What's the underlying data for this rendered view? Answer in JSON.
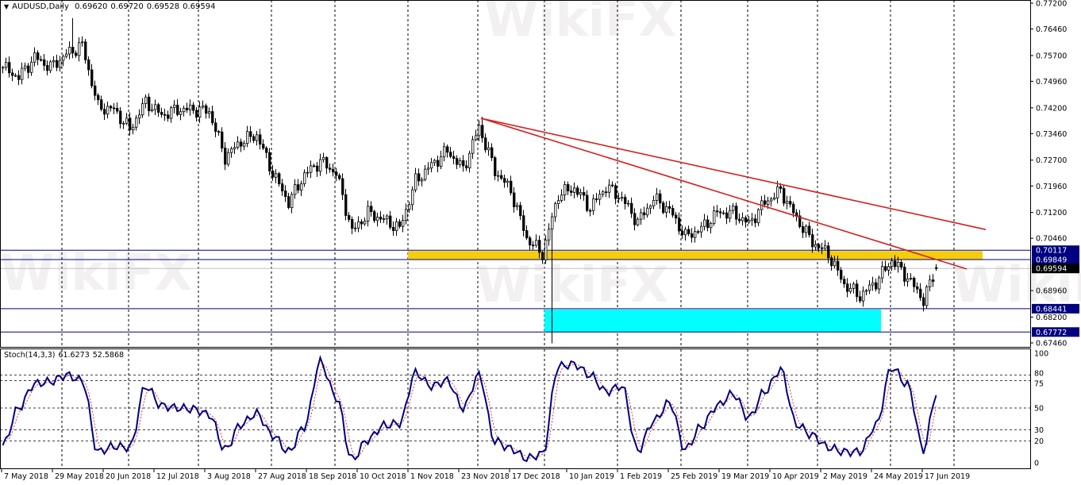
{
  "header": {
    "dropdown_icon": "triangle-down-icon",
    "symbol": "AUDUSD,Daily",
    "open": "0.69620",
    "high": "0.69720",
    "low": "0.69528",
    "close": "0.69594"
  },
  "indicator_header": {
    "name": "Stoch(14,3,3)",
    "k_value": "61.6273",
    "d_value": "52.5868"
  },
  "watermark": "WikiFX",
  "colors": {
    "bull_body": "#ffffff",
    "bear_body": "#000000",
    "trendline": "#d42020",
    "support_zone": "#f5cd0a",
    "target_zone": "#00ffff",
    "level_line": "#000080",
    "current_price_line": "#c0c0c0",
    "stoch_k": "#000080",
    "stoch_d": "#d01010"
  },
  "price_axis": {
    "ticks": [
      "0.77200",
      "0.76460",
      "0.75700",
      "0.74960",
      "0.74200",
      "0.73460",
      "0.72700",
      "0.71960",
      "0.71200",
      "0.70460",
      "0.68960",
      "0.68200",
      "0.67460"
    ],
    "range": [
      0.6746,
      0.772
    ]
  },
  "levels": [
    {
      "price": "0.70117",
      "kind": "level"
    },
    {
      "price": "0.69849",
      "kind": "level"
    },
    {
      "price": "0.69594",
      "kind": "current"
    },
    {
      "price": "0.68441",
      "kind": "level"
    },
    {
      "price": "0.67772",
      "kind": "level"
    }
  ],
  "stoch_axis": {
    "ticks": [
      "100",
      "80",
      "75",
      "50",
      "30",
      "20",
      "0"
    ],
    "dashed_levels": [
      80,
      75,
      50,
      30,
      20
    ]
  },
  "time_axis": {
    "labels": [
      "7 May 2018",
      "29 May 2018",
      "20 Jun 2018",
      "12 Jul 2018",
      "3 Aug 2018",
      "27 Aug 2018",
      "18 Sep 2018",
      "10 Oct 2018",
      "1 Nov 2018",
      "23 Nov 2018",
      "17 Dec 2018",
      "10 Jan 2019",
      "1 Feb 2019",
      "25 Feb 2019",
      "19 Mar 2019",
      "10 Apr 2019",
      "2 May 2019",
      "24 May 2019",
      "17 Jun 2019"
    ],
    "label_dates": [
      "2018-05-07",
      "2018-05-29",
      "2018-06-20",
      "2018-07-12",
      "2018-08-03",
      "2018-08-27",
      "2018-09-18",
      "2018-10-10",
      "2018-11-01",
      "2018-11-23",
      "2018-12-17",
      "2019-01-10",
      "2019-02-01",
      "2019-02-25",
      "2019-03-19",
      "2019-04-10",
      "2019-05-02",
      "2019-05-24",
      "2019-06-17"
    ]
  },
  "chart_data": [
    {
      "type": "candlestick",
      "title": "AUDUSD,Daily",
      "ylim": [
        0.6746,
        0.772
      ],
      "grid": "vertical dashed at month starts",
      "weekly_reference_close": [
        [
          "2018-05-07",
          0.7536
        ],
        [
          "2018-05-14",
          0.7508
        ],
        [
          "2018-05-21",
          0.7565
        ],
        [
          "2018-05-28",
          0.7536
        ],
        [
          "2018-06-04",
          0.7574
        ],
        [
          "2018-06-11",
          0.7599
        ],
        [
          "2018-06-18",
          0.7422
        ],
        [
          "2018-06-25",
          0.7415
        ],
        [
          "2018-07-02",
          0.7358
        ],
        [
          "2018-07-09",
          0.7438
        ],
        [
          "2018-07-16",
          0.7399
        ],
        [
          "2018-07-23",
          0.7415
        ],
        [
          "2018-07-30",
          0.7415
        ],
        [
          "2018-08-06",
          0.741
        ],
        [
          "2018-08-13",
          0.7278
        ],
        [
          "2018-08-20",
          0.7324
        ],
        [
          "2018-08-27",
          0.7342
        ],
        [
          "2018-09-03",
          0.7233
        ],
        [
          "2018-09-10",
          0.7149
        ],
        [
          "2018-09-17",
          0.7228
        ],
        [
          "2018-09-24",
          0.7267
        ],
        [
          "2018-10-01",
          0.7233
        ],
        [
          "2018-10-08",
          0.7065
        ],
        [
          "2018-10-15",
          0.7119
        ],
        [
          "2018-10-22",
          0.7099
        ],
        [
          "2018-10-29",
          0.7074
        ],
        [
          "2018-11-05",
          0.721
        ],
        [
          "2018-11-12",
          0.7256
        ],
        [
          "2018-11-19",
          0.7297
        ],
        [
          "2018-11-26",
          0.7244
        ],
        [
          "2018-12-03",
          0.7365
        ],
        [
          "2018-12-10",
          0.724
        ],
        [
          "2018-12-17",
          0.7183
        ],
        [
          "2018-12-24",
          0.7046
        ],
        [
          "2018-12-31",
          0.7001
        ],
        [
          "2019-01-07",
          0.7172
        ],
        [
          "2019-01-14",
          0.719
        ],
        [
          "2019-01-21",
          0.7133
        ],
        [
          "2019-01-28",
          0.7194
        ],
        [
          "2019-02-04",
          0.716
        ],
        [
          "2019-02-11",
          0.7092
        ],
        [
          "2019-02-18",
          0.716
        ],
        [
          "2019-02-25",
          0.7126
        ],
        [
          "2019-03-04",
          0.7051
        ],
        [
          "2019-03-11",
          0.7074
        ],
        [
          "2019-03-18",
          0.7119
        ],
        [
          "2019-03-25",
          0.7119
        ],
        [
          "2019-04-01",
          0.7087
        ],
        [
          "2019-04-08",
          0.7149
        ],
        [
          "2019-04-15",
          0.7183
        ],
        [
          "2019-04-22",
          0.7103
        ],
        [
          "2019-04-29",
          0.7035
        ],
        [
          "2019-05-06",
          0.7001
        ],
        [
          "2019-05-13",
          0.6914
        ],
        [
          "2019-05-20",
          0.688
        ],
        [
          "2019-05-27",
          0.6921
        ],
        [
          "2019-06-03",
          0.6983
        ],
        [
          "2019-06-10",
          0.6933
        ],
        [
          "2019-06-17",
          0.6869
        ],
        [
          "2019-06-21",
          0.69594
        ]
      ],
      "last_bar": {
        "date": "2019-06-21",
        "open": 0.6962,
        "high": 0.6972,
        "low": 0.69528,
        "close": 0.69594
      },
      "notable_extremes": [
        {
          "date": "2018-06-06",
          "high": 0.7677
        },
        {
          "date": "2018-12-04",
          "high": 0.7394
        },
        {
          "date": "2019-01-03",
          "low": 0.6745
        }
      ],
      "zones": [
        {
          "name": "support",
          "from": "2018-11-01",
          "to": "2019-07-12",
          "price_top": 0.70117,
          "price_bottom": 0.69849,
          "color": "#f5cd0a"
        },
        {
          "name": "target",
          "from": "2019-01-01",
          "to": "2019-05-29",
          "price_top": 0.68441,
          "price_bottom": 0.67772,
          "color": "#00ffff"
        }
      ],
      "trendlines": [
        {
          "from": [
            "2018-12-04",
            0.739
          ],
          "to": [
            "2019-07-15",
            0.7071
          ],
          "color": "#d42020"
        },
        {
          "from": [
            "2018-12-04",
            0.739
          ],
          "to": [
            "2019-07-05",
            0.6958
          ],
          "color": "#d42020"
        }
      ]
    },
    {
      "type": "line",
      "title": "Stoch(14,3,3)",
      "ylim": [
        0,
        100
      ],
      "series": [
        {
          "name": "%K",
          "color": "#000080",
          "weekly_values": [
            [
              "2018-05-07",
              16
            ],
            [
              "2018-05-14",
              50
            ],
            [
              "2018-05-21",
              72
            ],
            [
              "2018-05-28",
              74
            ],
            [
              "2018-06-04",
              80
            ],
            [
              "2018-06-11",
              75
            ],
            [
              "2018-06-18",
              10
            ],
            [
              "2018-06-25",
              15
            ],
            [
              "2018-07-02",
              14
            ],
            [
              "2018-07-09",
              70
            ],
            [
              "2018-07-16",
              52
            ],
            [
              "2018-07-23",
              50
            ],
            [
              "2018-07-30",
              49
            ],
            [
              "2018-08-06",
              44
            ],
            [
              "2018-08-13",
              12
            ],
            [
              "2018-08-20",
              35
            ],
            [
              "2018-08-27",
              45
            ],
            [
              "2018-09-03",
              25
            ],
            [
              "2018-09-10",
              10
            ],
            [
              "2018-09-17",
              33
            ],
            [
              "2018-09-24",
              92
            ],
            [
              "2018-10-01",
              60
            ],
            [
              "2018-10-08",
              3
            ],
            [
              "2018-10-15",
              21
            ],
            [
              "2018-10-22",
              34
            ],
            [
              "2018-10-29",
              36
            ],
            [
              "2018-11-05",
              82
            ],
            [
              "2018-11-12",
              70
            ],
            [
              "2018-11-19",
              75
            ],
            [
              "2018-11-26",
              50
            ],
            [
              "2018-12-03",
              80
            ],
            [
              "2018-12-10",
              20
            ],
            [
              "2018-12-17",
              13
            ],
            [
              "2018-12-24",
              4
            ],
            [
              "2018-12-31",
              8
            ],
            [
              "2019-01-07",
              88
            ],
            [
              "2019-01-14",
              90
            ],
            [
              "2019-01-21",
              80
            ],
            [
              "2019-01-28",
              65
            ],
            [
              "2019-02-04",
              70
            ],
            [
              "2019-02-11",
              11
            ],
            [
              "2019-02-18",
              38
            ],
            [
              "2019-02-25",
              55
            ],
            [
              "2019-03-04",
              12
            ],
            [
              "2019-03-11",
              33
            ],
            [
              "2019-03-18",
              52
            ],
            [
              "2019-03-25",
              63
            ],
            [
              "2019-04-01",
              41
            ],
            [
              "2019-04-08",
              65
            ],
            [
              "2019-04-15",
              85
            ],
            [
              "2019-04-22",
              35
            ],
            [
              "2019-04-29",
              25
            ],
            [
              "2019-05-06",
              14
            ],
            [
              "2019-05-13",
              10
            ],
            [
              "2019-05-20",
              10
            ],
            [
              "2019-05-27",
              34
            ],
            [
              "2019-06-03",
              87
            ],
            [
              "2019-06-10",
              71
            ],
            [
              "2019-06-17",
              12
            ],
            [
              "2019-06-21",
              61.6273
            ]
          ]
        },
        {
          "name": "%D",
          "color": "#d01010",
          "last_value": 52.5868
        }
      ]
    }
  ]
}
